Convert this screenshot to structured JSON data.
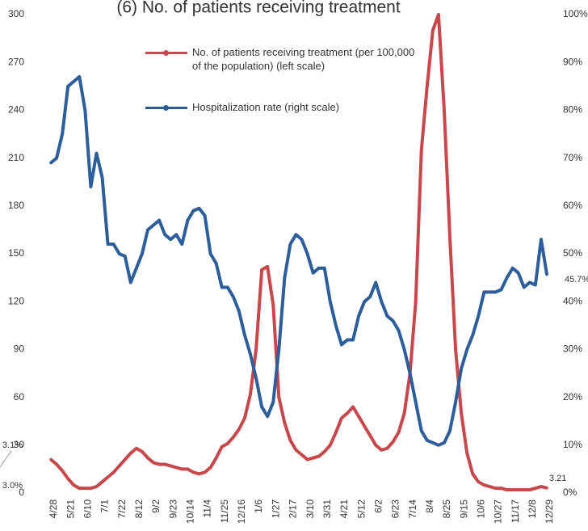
{
  "chart_data": {
    "type": "line",
    "title": "(6) No. of patients receiving treatment",
    "categories": [
      "4/28",
      null,
      null,
      "5/21",
      null,
      null,
      "6/10",
      null,
      null,
      "7/1",
      null,
      null,
      "7/22",
      null,
      null,
      "8/12",
      null,
      null,
      "9/2",
      null,
      null,
      "9/23",
      null,
      null,
      "10/14",
      null,
      null,
      "11/4",
      null,
      null,
      "11/25",
      null,
      null,
      "12/16",
      null,
      null,
      "1/6",
      null,
      null,
      "1/27",
      null,
      null,
      "2/17",
      null,
      null,
      "3/10",
      null,
      null,
      "3/31",
      null,
      null,
      "4/21",
      null,
      null,
      "5/12",
      null,
      null,
      "6/2",
      null,
      null,
      "6/23",
      null,
      null,
      "7/14",
      null,
      null,
      "8/4",
      null,
      null,
      "8/25",
      null,
      null,
      "9/15",
      null,
      null,
      "10/6",
      null,
      null,
      "10/27",
      null,
      null,
      "11/17",
      null,
      null,
      "12/8",
      null,
      null,
      "12/29"
    ],
    "series": [
      {
        "name": "No. of patients receiving treatment (per 100,000 of the population) (left scale)",
        "color": "#c9474a",
        "axis": "y",
        "values": [
          21,
          18,
          14,
          9,
          5,
          3,
          3,
          3,
          4,
          7,
          10,
          13,
          17,
          21,
          25,
          28,
          26,
          22,
          19,
          18,
          18,
          17,
          16,
          15,
          15,
          13,
          12,
          13,
          16,
          22,
          29,
          31,
          35,
          40,
          47,
          62,
          90,
          140,
          142,
          118,
          60,
          44,
          33,
          27,
          24,
          21,
          22,
          23,
          26,
          30,
          38,
          47,
          50,
          54,
          48,
          42,
          36,
          30,
          27,
          28,
          32,
          38,
          50,
          75,
          120,
          215,
          255,
          290,
          300,
          240,
          160,
          90,
          50,
          25,
          12,
          7,
          5,
          4,
          3,
          3,
          2,
          2,
          2,
          2,
          2,
          3,
          4,
          3.21
        ]
      },
      {
        "name": "Hospitalization rate (right scale)",
        "color": "#2c5d9c",
        "axis": "y2",
        "values": [
          69,
          70,
          75,
          85,
          86,
          87,
          80,
          64,
          71,
          66,
          52,
          52,
          50,
          49.5,
          44,
          47,
          50,
          55,
          56,
          57,
          54,
          53,
          54,
          52,
          57,
          59,
          59.5,
          58,
          50,
          48,
          43,
          43,
          41,
          38,
          33,
          29,
          24,
          18,
          16,
          19,
          30,
          45,
          52,
          54,
          53,
          50,
          46,
          47,
          47,
          40,
          35,
          31,
          32,
          32,
          37,
          40,
          41,
          44,
          40,
          37,
          36,
          34,
          30,
          25,
          19,
          13,
          11,
          10.5,
          10,
          10.5,
          13,
          19,
          26,
          30,
          33,
          37,
          42,
          42,
          42,
          42.5,
          45,
          47,
          46,
          43,
          44,
          43.5,
          53,
          45.7
        ]
      }
    ],
    "ylim": [
      0,
      300
    ],
    "yticks": [
      0,
      30,
      60,
      90,
      120,
      150,
      180,
      210,
      240,
      270,
      300
    ],
    "y2lim": [
      0,
      100
    ],
    "y2ticks": [
      {
        "value": 0,
        "label": "0%"
      },
      {
        "value": 10,
        "label": "10%"
      },
      {
        "value": 20,
        "label": "20%"
      },
      {
        "value": 30,
        "label": "30%"
      },
      {
        "value": 40,
        "label": "40%"
      },
      {
        "value": 50,
        "label": "50%"
      },
      {
        "value": 60,
        "label": "60%"
      },
      {
        "value": 70,
        "label": "70%"
      },
      {
        "value": 80,
        "label": "80%"
      },
      {
        "value": 90,
        "label": "90%"
      },
      {
        "value": 100,
        "label": "100%"
      }
    ],
    "annotations": [
      "3.1%",
      "3.0%",
      "45.7%",
      "3.21"
    ],
    "grid": false
  }
}
